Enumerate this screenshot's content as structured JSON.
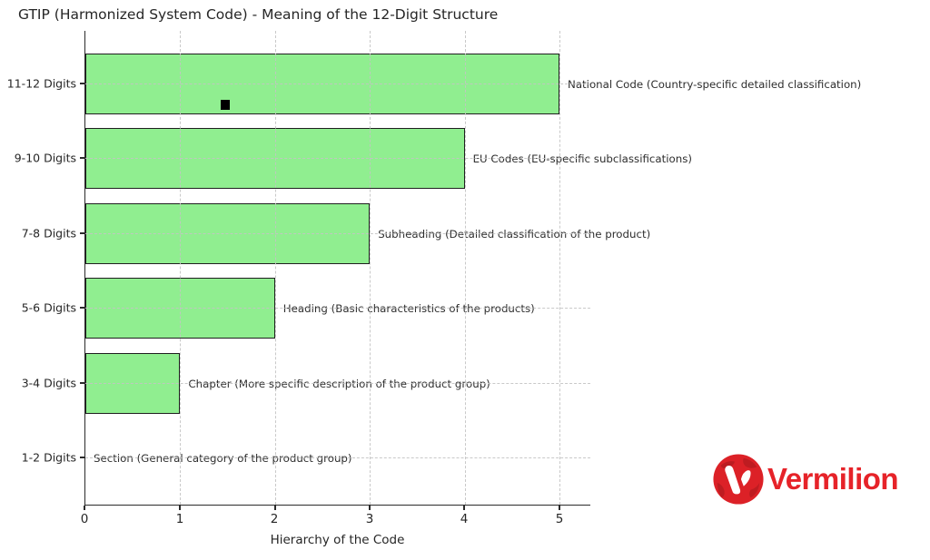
{
  "title": "GTIP (Harmonized System Code) - Meaning of the 12-Digit Structure",
  "chart_data": {
    "type": "bar",
    "orientation": "horizontal",
    "title": "GTIP (Harmonized System Code) - Meaning of the 12-Digit Structure",
    "xlabel": "Hierarchy of the Code",
    "ylabel": "",
    "xlim": [
      0,
      5.35
    ],
    "x_ticks": [
      "0",
      "1",
      "2",
      "3",
      "4",
      "5"
    ],
    "grid": "dashed, light gray, both axes",
    "bar_color": "#90EE90",
    "bar_edge_color": "#1f1f1f",
    "categories": [
      "11-12 Digits",
      "9-10 Digits",
      "7-8 Digits",
      "5-6 Digits",
      "3-4 Digits",
      "1-2 Digits"
    ],
    "values": [
      5,
      4,
      3,
      2,
      1,
      0
    ],
    "annotations": [
      "National Code (Country-specific detailed classification)",
      "EU Codes (EU-specific subclassifications)",
      "Subheading (Detailed classification of the product)",
      "Heading (Basic characteristics of the products)",
      "Chapter (More specific description of the product group)",
      "Section (General category of the product group)"
    ]
  },
  "artifacts": {
    "black_square_marker": {
      "row": "11-12 Digits",
      "approx_x_value": 1.45
    }
  },
  "watermark": {
    "brand": "Vermilion",
    "icon": "globe-v-icon",
    "color": "#e62329"
  },
  "colors": {
    "bar_fill": "#90EE90",
    "bar_edge": "#1f1f1f",
    "grid": "#c3c3c3",
    "text": "#262626",
    "logo_red": "#e62329"
  }
}
